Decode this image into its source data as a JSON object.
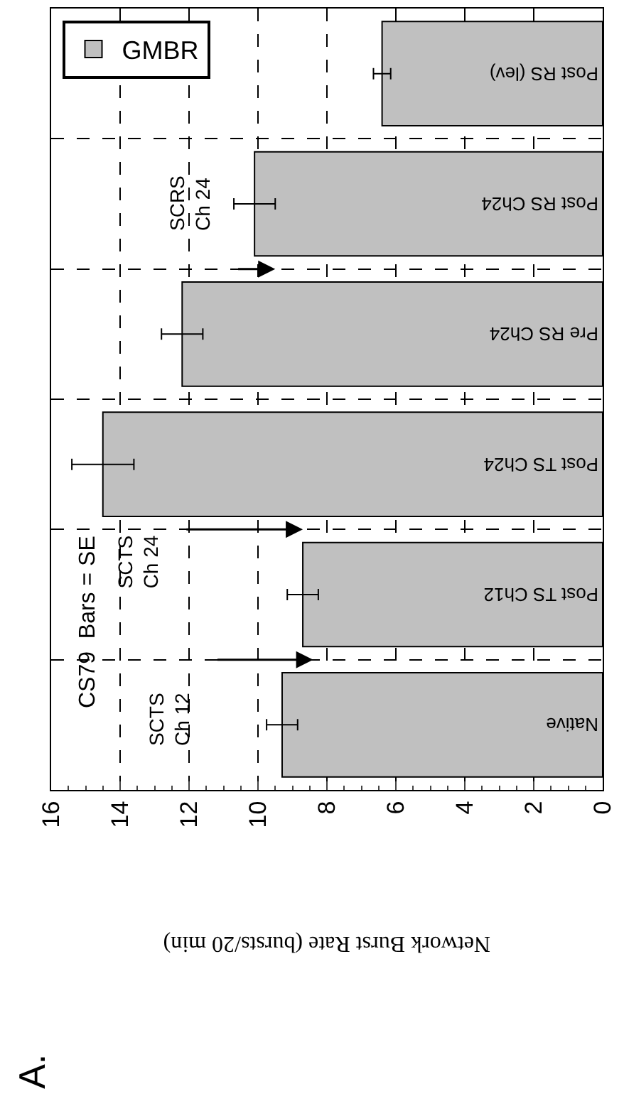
{
  "chart_data": {
    "type": "bar",
    "orientation": "horizontal",
    "xlabel": "Network Burst Rate (bursts/20 min)",
    "categories": [
      "Post RS (lev)",
      "Post RS Ch24",
      "Pre RS Ch24",
      "Post TS Ch24",
      "Post TS Ch12",
      "Native"
    ],
    "series": [
      {
        "name": "GMBR",
        "color": "#c0c0c0",
        "values": [
          6.4,
          10.1,
          12.2,
          14.5,
          8.7,
          9.3
        ],
        "errors": [
          0.25,
          0.6,
          0.6,
          0.9,
          0.45,
          0.45
        ]
      }
    ],
    "xlim": [
      16,
      0
    ],
    "xticks": [
      16,
      14,
      12,
      10,
      8,
      6,
      4,
      2,
      0
    ],
    "grid": true,
    "legend": "top left",
    "annotations": [
      "SCRS\nCh 24",
      "SCTS\nCh 24",
      "SCTS\nCh 12",
      "CS79  Bars = SE",
      "A."
    ]
  }
}
